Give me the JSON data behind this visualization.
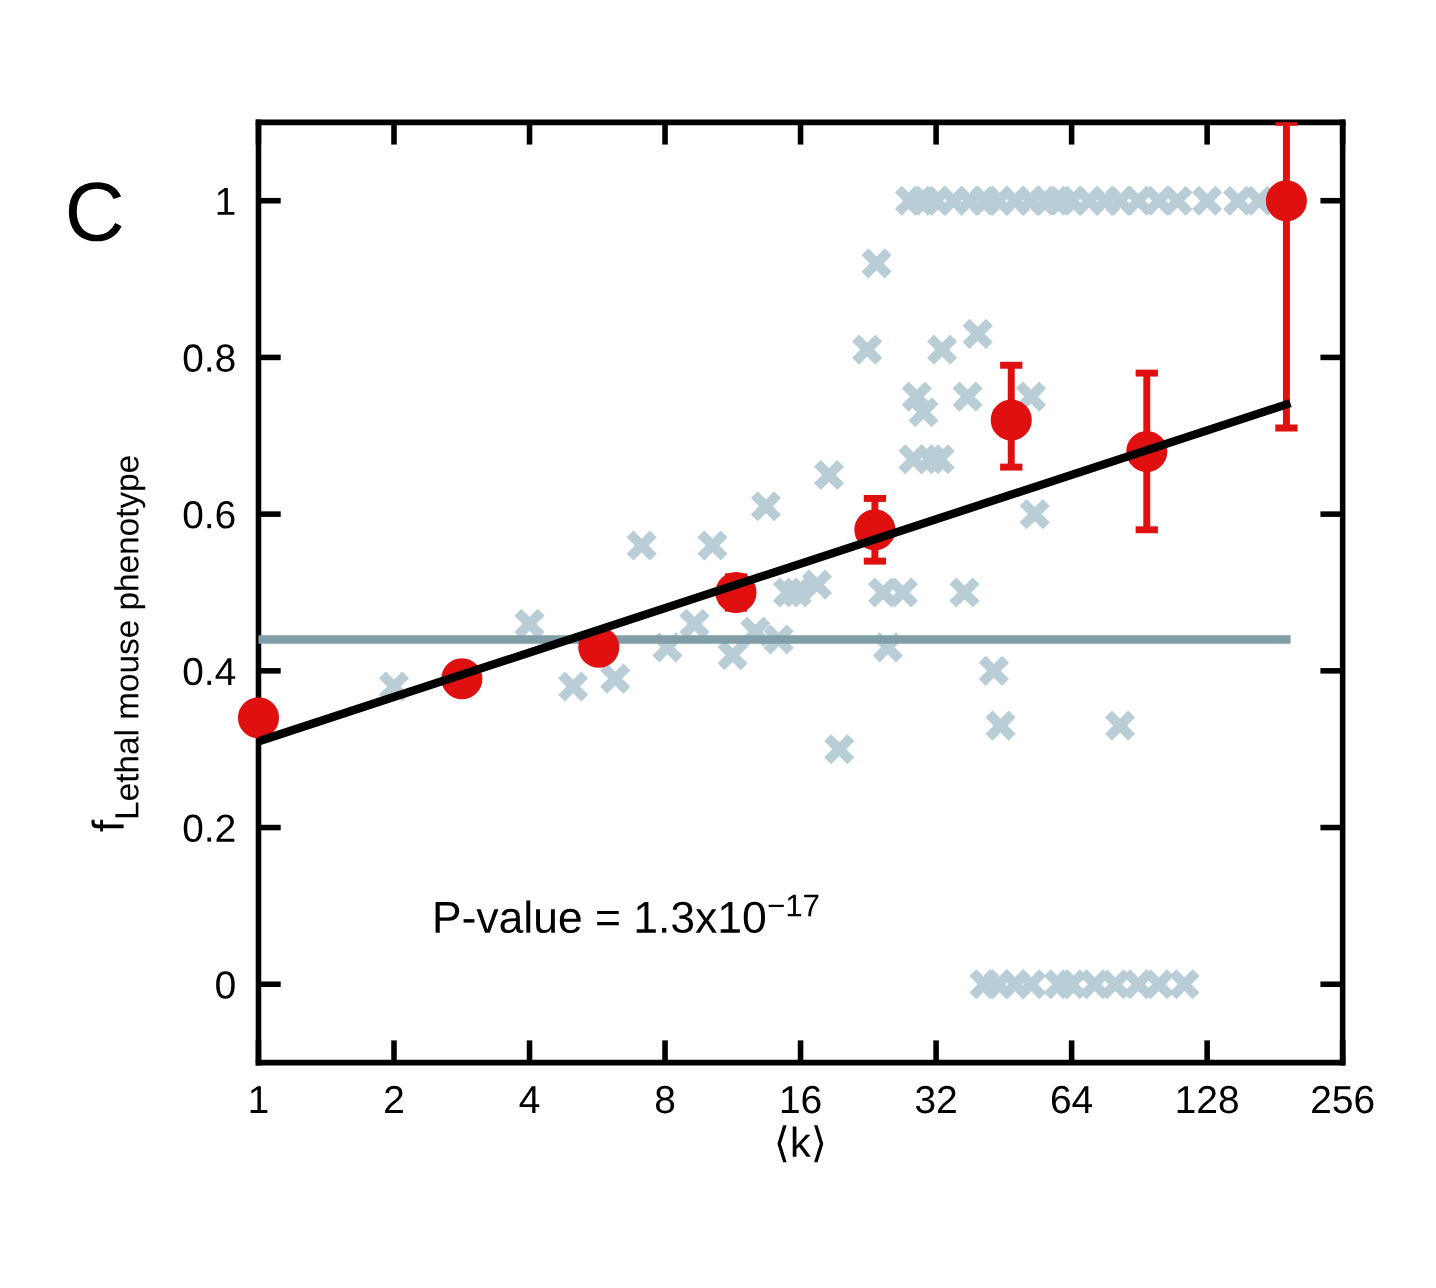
{
  "chart_data": {
    "type": "scatter",
    "xlabel": "⟨k⟩",
    "ylabel": "f$_{Lethal mouse phenotype}$",
    "log": "x",
    "xlim": [
      1,
      256
    ],
    "xticks": [
      1,
      2,
      4,
      8,
      16,
      32,
      64,
      128,
      256
    ],
    "ylim": [
      -0.1,
      1.1
    ],
    "yticks": [
      0,
      0.2,
      0.4,
      0.6,
      0.8,
      1
    ],
    "grid": false,
    "annotations": [
      "C",
      "P-value = 1.3x10$^{−17}$"
    ],
    "series": [
      {
        "marker": "cross",
        "color": "#b9cdd7",
        "x": [
          2.0,
          4.0,
          5.0,
          6.2,
          7.1,
          8.1,
          9.3,
          10.2,
          11.3,
          12.7,
          13.4,
          14.3,
          15.7,
          17.4,
          18.5,
          19.5,
          15,
          24.4,
          25,
          23.6,
          22.5,
          27,
          29,
          30,
          31,
          28.5,
          32.6,
          33,
          39.6,
          37.6,
          37,
          43,
          44.5,
          52,
          53,
          82,
          28,
          30,
          32,
          35,
          38,
          41,
          44,
          48,
          52,
          56,
          60,
          64,
          70,
          76,
          82,
          90,
          100,
          110,
          128,
          150,
          167,
          41,
          44,
          48,
          52,
          60,
          64,
          72,
          80,
          90,
          100,
          114
        ],
        "values": [
          0.38,
          0.46,
          0.38,
          0.39,
          0.56,
          0.43,
          0.46,
          0.56,
          0.42,
          0.45,
          0.61,
          0.44,
          0.5,
          0.51,
          0.65,
          0.3,
          0.5,
          0.5,
          0.43,
          0.92,
          0.81,
          0.5,
          0.75,
          0.73,
          0.67,
          0.67,
          0.67,
          0.81,
          0.83,
          0.75,
          0.5,
          0.4,
          0.33,
          0.75,
          0.6,
          0.33,
          1,
          1,
          1,
          1,
          1,
          1,
          1,
          1,
          1,
          1,
          1,
          1,
          1,
          1,
          1,
          1,
          1,
          1,
          1,
          1,
          1,
          0,
          0,
          0,
          0,
          0,
          0,
          0,
          0,
          0,
          0,
          0
        ]
      },
      {
        "type": "line",
        "color": "#7f9ea8",
        "x": [
          1,
          192
        ],
        "values": [
          0.44,
          0.44
        ]
      },
      {
        "marker": "circle",
        "color": "#e01010",
        "x": [
          1,
          2.83,
          5.7,
          11.5,
          23.4,
          47,
          94,
          192
        ],
        "values": [
          0.34,
          0.39,
          0.43,
          0.5,
          0.58,
          0.72,
          0.68,
          1.0
        ],
        "errors": [
          null,
          null,
          null,
          0.02,
          [
            0.54,
            0.62
          ],
          [
            0.66,
            0.79
          ],
          [
            0.58,
            0.78
          ],
          [
            0.71,
            1.1
          ]
        ]
      },
      {
        "type": "line",
        "color": "#000000",
        "x": [
          1,
          192
        ],
        "values": [
          0.31,
          0.74
        ]
      }
    ]
  }
}
